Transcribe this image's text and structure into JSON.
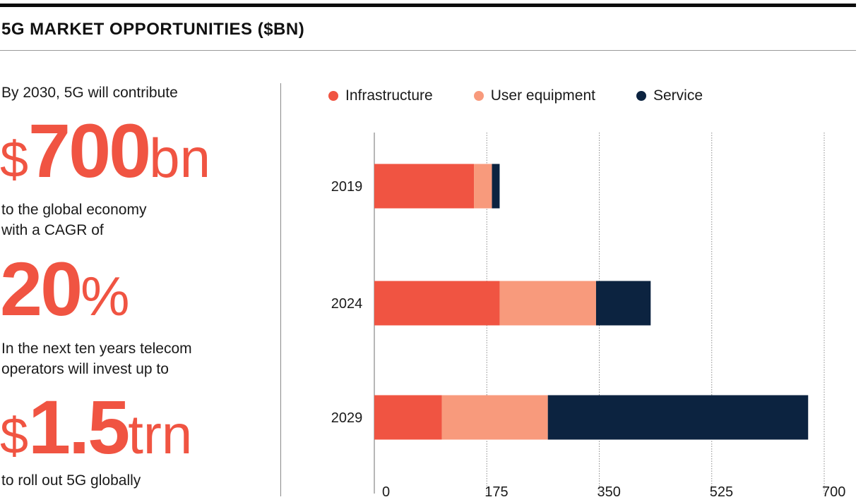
{
  "header": {
    "title": "5G MARKET OPPORTUNITIES ($BN)"
  },
  "stats": {
    "intro": "By 2030, 5G will contribute",
    "stat1": {
      "symbol": "$",
      "value": "700",
      "unit": "bn"
    },
    "text2_line1": "to the global economy",
    "text2_line2": "with a CAGR of",
    "stat2": {
      "value": "20",
      "unit": "%"
    },
    "text3_line1": "In the next ten years telecom",
    "text3_line2": "operators will invest up to",
    "stat3": {
      "symbol": "$",
      "value": "1.5",
      "unit": "trn"
    },
    "text4": "to roll out 5G globally"
  },
  "colors": {
    "infrastructure": "#f05442",
    "user_equipment": "#f89a7c",
    "service": "#0c2340",
    "accent_text": "#f05442"
  },
  "chart_data": {
    "type": "bar",
    "orientation": "horizontal",
    "stacked": true,
    "title": "5G MARKET OPPORTUNITIES ($BN)",
    "categories": [
      "2019",
      "2024",
      "2029"
    ],
    "series": [
      {
        "name": "Infrastructure",
        "values": [
          155,
          195,
          105
        ]
      },
      {
        "name": "User equipment",
        "values": [
          28,
          150,
          165
        ]
      },
      {
        "name": "Service",
        "values": [
          12,
          85,
          405
        ]
      }
    ],
    "xlim": [
      0,
      700
    ],
    "xticks": [
      0,
      175,
      350,
      525,
      700
    ],
    "grid": true,
    "legend": "top"
  }
}
